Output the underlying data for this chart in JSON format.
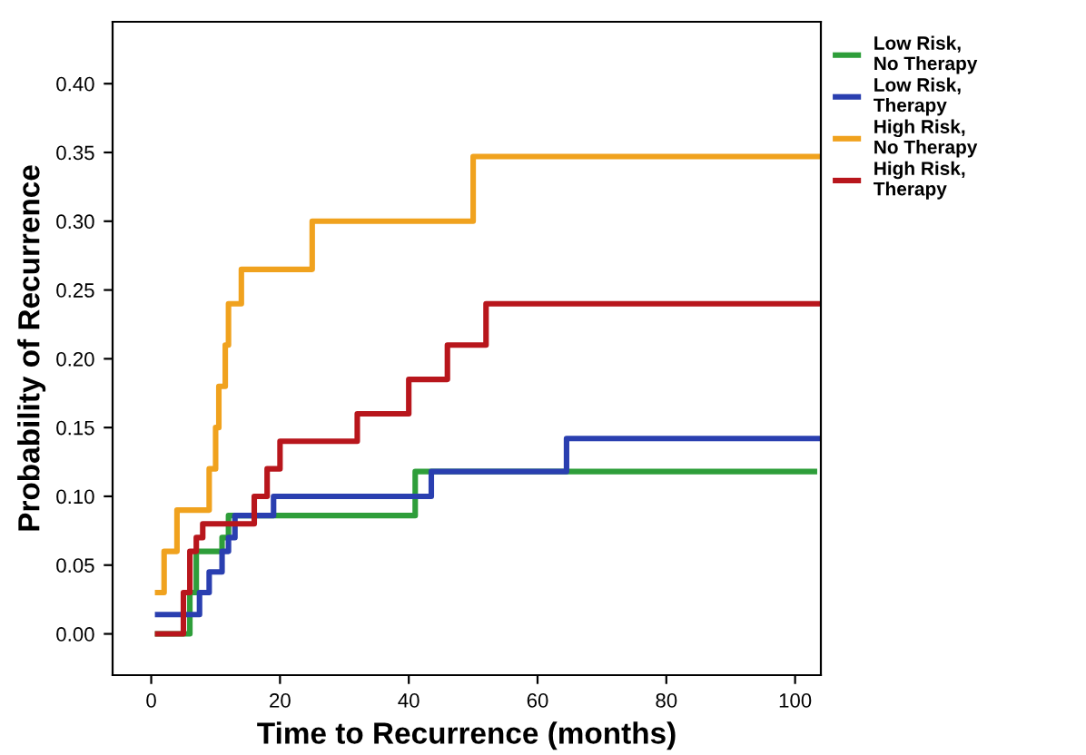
{
  "chart_data": {
    "type": "step",
    "xlabel": "Time to Recurrence (months)",
    "ylabel": "Probability of Recurrence",
    "xlim": [
      -6,
      104
    ],
    "ylim": [
      -0.03,
      0.445
    ],
    "xticks": [
      0,
      20,
      40,
      60,
      80,
      100
    ],
    "yticks": [
      {
        "value": 0,
        "label": "0.00"
      },
      {
        "value": 0.05,
        "label": "0.05"
      },
      {
        "value": 0.1,
        "label": "0.10"
      },
      {
        "value": 0.15,
        "label": "0.15"
      },
      {
        "value": 0.2,
        "label": "0.20"
      },
      {
        "value": 0.25,
        "label": "0.25"
      },
      {
        "value": 0.3,
        "label": "0.30"
      },
      {
        "value": 0.35,
        "label": "0.35"
      },
      {
        "value": 0.4,
        "label": "0.40"
      }
    ],
    "grid": false,
    "legend": "right",
    "marker": "none",
    "line_style": "solid",
    "series": [
      {
        "name": "Low Risk,\nNo Therapy",
        "color": "#2e9e3a",
        "x": [
          1,
          5.5,
          6,
          7,
          11,
          12,
          40,
          41,
          103
        ],
        "values": [
          0,
          0,
          0.03,
          0.06,
          0.07,
          0.086,
          0.086,
          0.118,
          0.118
        ]
      },
      {
        "name": "Low Risk,\nTherapy",
        "color": "#2a3fb0",
        "x": [
          1,
          7,
          7.5,
          9,
          11,
          12,
          13,
          19,
          43.5,
          64.5,
          104
        ],
        "values": [
          0.014,
          0.014,
          0.03,
          0.045,
          0.06,
          0.07,
          0.086,
          0.1,
          0.118,
          0.142,
          0.142
        ]
      },
      {
        "name": "High Risk,\nNo Therapy",
        "color": "#f0a21e",
        "x": [
          1,
          2,
          4,
          9,
          10,
          10.5,
          11.5,
          12,
          14,
          25,
          50,
          104
        ],
        "values": [
          0.03,
          0.06,
          0.09,
          0.12,
          0.15,
          0.18,
          0.21,
          0.24,
          0.265,
          0.3,
          0.347,
          0.347
        ]
      },
      {
        "name": "High Risk,\nTherapy",
        "color": "#b8161c",
        "x": [
          1,
          5,
          6,
          7,
          8,
          16,
          18,
          20,
          32,
          40,
          46,
          52,
          104
        ],
        "values": [
          0,
          0.03,
          0.06,
          0.07,
          0.08,
          0.1,
          0.12,
          0.14,
          0.16,
          0.185,
          0.21,
          0.24,
          0.24
        ]
      }
    ]
  }
}
